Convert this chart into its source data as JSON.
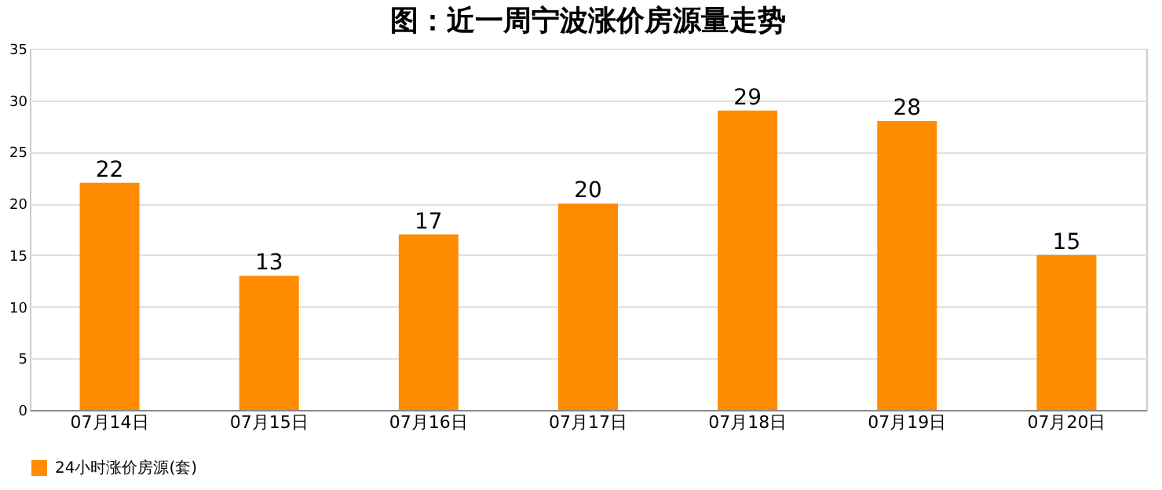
{
  "chart_data": {
    "type": "bar",
    "title": "图：近一周宁波涨价房源量走势",
    "categories": [
      "07月14日",
      "07月15日",
      "07月16日",
      "07月17日",
      "07月18日",
      "07月19日",
      "07月20日"
    ],
    "series": [
      {
        "name": "24小时涨价房源(套)",
        "color": "#ff8c00",
        "values": [
          22,
          13,
          17,
          20,
          29,
          28,
          15
        ]
      }
    ],
    "ylim": [
      0,
      35
    ],
    "yticks": [
      0,
      5,
      10,
      15,
      20,
      25,
      30,
      35
    ],
    "grid": "y",
    "legend": "bottom",
    "data_labels": true
  }
}
